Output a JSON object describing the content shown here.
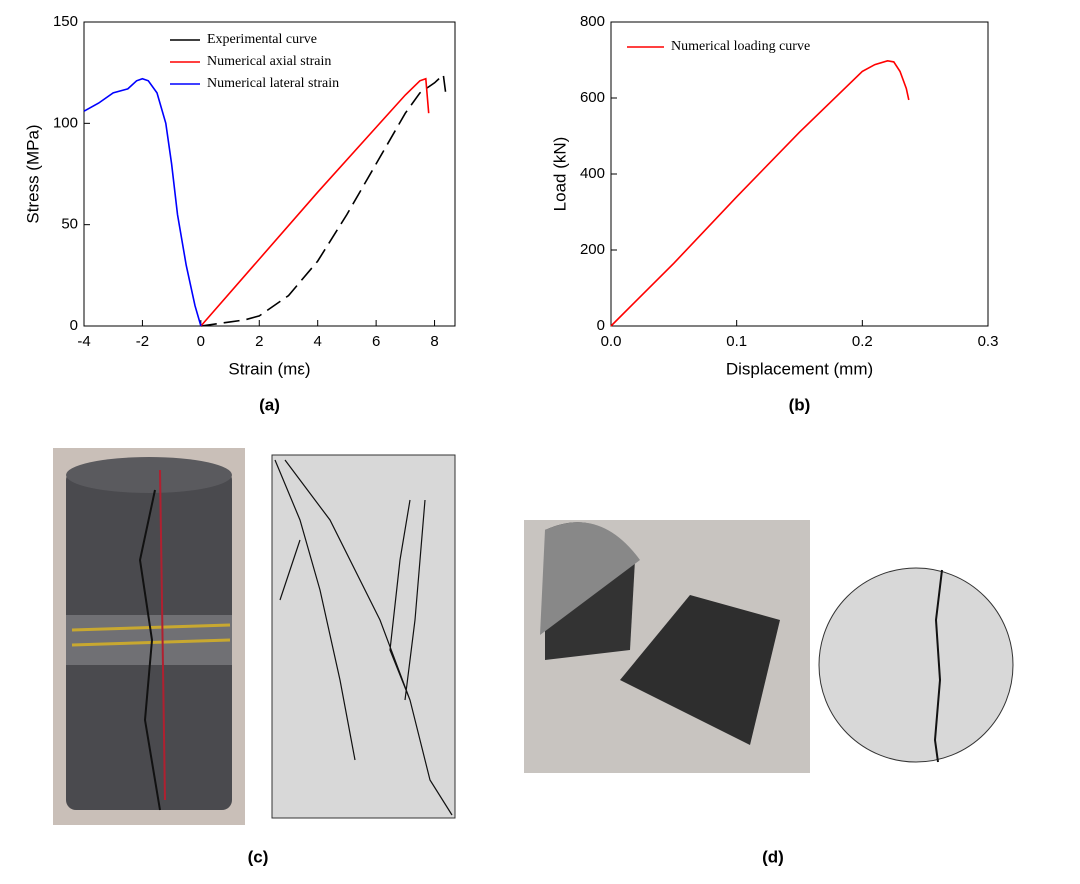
{
  "chart_data": [
    {
      "type": "line",
      "caption": "(a)",
      "x_label": "Strain (mε)",
      "y_label": "Stress (MPa)",
      "xlim": [
        -4,
        8.7
      ],
      "xticks": [
        -4,
        -2,
        0,
        2,
        4,
        6,
        8
      ],
      "ylim": [
        0,
        150
      ],
      "yticks": [
        0,
        50,
        100,
        150
      ],
      "series": [
        {
          "name": "Experimental curve",
          "color": "#000000",
          "dashed": true,
          "x": [
            0,
            1,
            1.5,
            2,
            3,
            4,
            5,
            6,
            7,
            7.5,
            8,
            8.3,
            8.4
          ],
          "values": [
            0,
            2,
            3,
            5,
            15,
            32,
            55,
            80,
            105,
            115,
            120,
            124,
            113
          ]
        },
        {
          "name": "Numerical axial strain",
          "color": "#ff0000",
          "x": [
            0,
            2,
            4,
            6,
            7,
            7.5,
            7.7,
            7.8
          ],
          "values": [
            0,
            33,
            66,
            98,
            114,
            121,
            122,
            105
          ]
        },
        {
          "name": "Numerical lateral strain",
          "color": "#0000ff",
          "x": [
            -4,
            -3.5,
            -3,
            -2.5,
            -2.2,
            -2,
            -1.8,
            -1.5,
            -1.2,
            -1,
            -0.8,
            -0.5,
            -0.2,
            0
          ],
          "values": [
            106,
            110,
            115,
            117,
            121,
            122,
            121,
            115,
            100,
            80,
            55,
            30,
            10,
            0
          ]
        }
      ]
    },
    {
      "type": "line",
      "caption": "(b)",
      "x_label": "Displacement (mm)",
      "y_label": "Load (kN)",
      "xlim": [
        0,
        0.3
      ],
      "xticks": [
        {
          "value": 0,
          "label": "0.0"
        },
        0.1,
        0.2,
        0.3
      ],
      "ylim": [
        0,
        800
      ],
      "yticks": [
        0,
        200,
        400,
        600,
        800
      ],
      "series": [
        {
          "name": "Numerical loading curve",
          "color": "#ff0000",
          "x": [
            0,
            0.05,
            0.1,
            0.15,
            0.2,
            0.21,
            0.22,
            0.225,
            0.23,
            0.235,
            0.237
          ],
          "values": [
            0,
            165,
            340,
            510,
            670,
            688,
            698,
            695,
            670,
            625,
            595
          ]
        }
      ]
    }
  ],
  "figures": [
    {
      "caption": "(c)"
    },
    {
      "caption": "(d)"
    }
  ]
}
